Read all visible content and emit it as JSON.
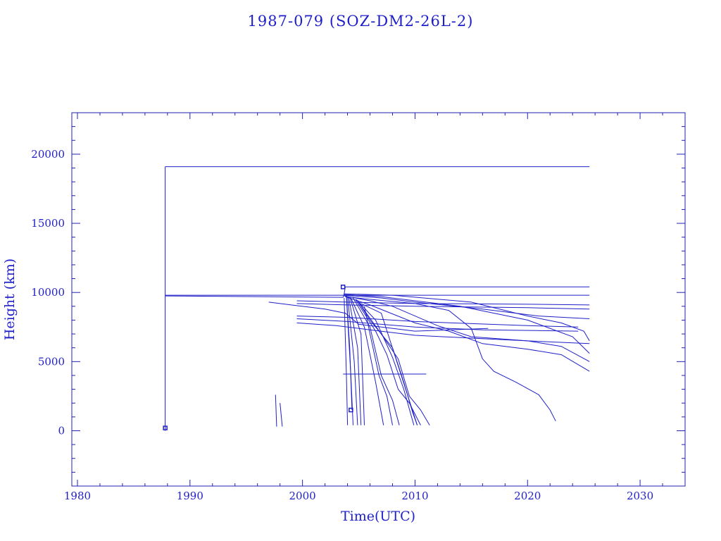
{
  "chart_data": {
    "type": "line",
    "title": "1987-079 (SOZ-DM2-26L-2)",
    "xlabel": "Time(UTC)",
    "ylabel": "Height (km)",
    "xlim": [
      1979.5,
      2034
    ],
    "ylim": [
      -4000,
      23000
    ],
    "xticks": [
      1980,
      1990,
      2000,
      2010,
      2020,
      2030
    ],
    "yticks": [
      0,
      5000,
      10000,
      15000,
      20000
    ],
    "x_minor_step": 2,
    "y_minor_step": 1000,
    "grid": false,
    "color": "#1f1fc8",
    "parent_object": {
      "name": "parent",
      "points": [
        [
          1987.8,
          0
        ],
        [
          1987.8,
          19100
        ],
        [
          1987.8,
          9800
        ],
        [
          2025.5,
          9800
        ]
      ]
    },
    "series": [
      {
        "points": [
          [
            1987.8,
            19100
          ],
          [
            2025.5,
            19100
          ]
        ]
      },
      {
        "points": [
          [
            1987.8,
            9750
          ],
          [
            2003.6,
            9650
          ],
          [
            2003.7,
            9900
          ],
          [
            2003.8,
            10400
          ],
          [
            2025.5,
            10400
          ]
        ]
      },
      {
        "points": [
          [
            1997.6,
            2600
          ],
          [
            1997.7,
            300
          ]
        ]
      },
      {
        "points": [
          [
            1998.0,
            2000
          ],
          [
            1998.2,
            300
          ]
        ]
      },
      {
        "points": [
          [
            1997.0,
            9300
          ],
          [
            1999,
            9100
          ],
          [
            2002,
            8800
          ],
          [
            2003.8,
            8500
          ],
          [
            2005,
            7700
          ],
          [
            2010,
            7200
          ],
          [
            2016.5,
            7400
          ]
        ]
      },
      {
        "points": [
          [
            1999.5,
            9400
          ],
          [
            2004,
            9300
          ],
          [
            2010,
            9200
          ],
          [
            2020,
            9150
          ],
          [
            2025.5,
            9100
          ]
        ]
      },
      {
        "points": [
          [
            1999.5,
            9200
          ],
          [
            2004,
            9100
          ],
          [
            2010,
            9000
          ],
          [
            2020,
            8900
          ],
          [
            2025.5,
            8800
          ]
        ]
      },
      {
        "points": [
          [
            1999.5,
            8300
          ],
          [
            2004,
            8200
          ],
          [
            2010,
            7900
          ],
          [
            2020,
            7600
          ],
          [
            2024.5,
            7500
          ]
        ]
      },
      {
        "points": [
          [
            1999.5,
            8100
          ],
          [
            2004,
            7900
          ],
          [
            2010,
            7500
          ],
          [
            2016,
            7300
          ],
          [
            2024.5,
            7200
          ]
        ]
      },
      {
        "points": [
          [
            1999.5,
            7800
          ],
          [
            2003,
            7600
          ],
          [
            2006,
            7300
          ],
          [
            2010,
            6900
          ],
          [
            2015,
            6700
          ],
          [
            2020,
            6500
          ],
          [
            2025.5,
            6300
          ]
        ]
      },
      {
        "points": [
          [
            2003.7,
            9900
          ],
          [
            2008,
            9800
          ],
          [
            2015,
            9300
          ],
          [
            2020,
            8300
          ],
          [
            2023,
            7800
          ],
          [
            2025,
            7200
          ],
          [
            2025.5,
            6500
          ]
        ]
      },
      {
        "points": [
          [
            2003.7,
            9850
          ],
          [
            2007,
            9700
          ],
          [
            2014,
            9000
          ],
          [
            2020,
            8000
          ],
          [
            2024,
            6800
          ],
          [
            2025.5,
            5600
          ]
        ]
      },
      {
        "points": [
          [
            2003.7,
            9800
          ],
          [
            2007,
            9600
          ],
          [
            2010,
            9300
          ],
          [
            2016,
            8800
          ],
          [
            2021,
            8300
          ],
          [
            2025.5,
            8100
          ]
        ]
      },
      {
        "points": [
          [
            2003.7,
            9750
          ],
          [
            2006,
            9400
          ],
          [
            2008,
            9000
          ],
          [
            2012,
            7600
          ],
          [
            2015,
            6800
          ],
          [
            2020,
            6500
          ],
          [
            2023,
            6100
          ],
          [
            2025.5,
            5000
          ]
        ]
      },
      {
        "points": [
          [
            2003.8,
            9700
          ],
          [
            2006,
            9100
          ],
          [
            2010,
            7800
          ],
          [
            2013,
            7200
          ],
          [
            2016,
            6300
          ],
          [
            2020,
            5900
          ],
          [
            2023,
            5500
          ],
          [
            2025.5,
            4300
          ]
        ]
      },
      {
        "points": [
          [
            2003.9,
            9700
          ],
          [
            2006,
            9500
          ],
          [
            2010,
            9200
          ],
          [
            2013,
            8700
          ],
          [
            2015,
            7400
          ],
          [
            2016,
            5200
          ],
          [
            2017,
            4300
          ],
          [
            2019,
            3500
          ],
          [
            2021,
            2600
          ],
          [
            2022,
            1500
          ],
          [
            2022.5,
            700
          ]
        ]
      },
      {
        "points": [
          [
            2003.6,
            4100
          ],
          [
            2011,
            4100
          ]
        ]
      },
      {
        "points": [
          [
            2003.9,
            9800
          ],
          [
            2004.2,
            6000
          ],
          [
            2004.4,
            1500
          ]
        ]
      },
      {
        "points": [
          [
            2003.7,
            9600
          ],
          [
            2003.9,
            4000
          ],
          [
            2004.0,
            400
          ]
        ]
      },
      {
        "points": [
          [
            2003.9,
            9700
          ],
          [
            2004.3,
            4000
          ],
          [
            2004.5,
            400
          ]
        ]
      },
      {
        "points": [
          [
            2004.0,
            9700
          ],
          [
            2004.6,
            5000
          ],
          [
            2004.9,
            400
          ]
        ]
      },
      {
        "points": [
          [
            2004.1,
            9700
          ],
          [
            2004.9,
            6000
          ],
          [
            2005.2,
            400
          ]
        ]
      },
      {
        "points": [
          [
            2004.2,
            9700
          ],
          [
            2005.2,
            7000
          ],
          [
            2005.5,
            400
          ]
        ]
      },
      {
        "points": [
          [
            2004.3,
            9600
          ],
          [
            2005.5,
            7500
          ],
          [
            2006.5,
            3500
          ],
          [
            2007.2,
            400
          ]
        ]
      },
      {
        "points": [
          [
            2004.5,
            9600
          ],
          [
            2006,
            7500
          ],
          [
            2007,
            4000
          ],
          [
            2008,
            2200
          ],
          [
            2008.6,
            400
          ]
        ]
      },
      {
        "points": [
          [
            2004.7,
            9500
          ],
          [
            2006.5,
            7200
          ],
          [
            2007.5,
            5500
          ],
          [
            2008.5,
            3000
          ],
          [
            2009.5,
            2000
          ],
          [
            2010.5,
            400
          ]
        ]
      },
      {
        "points": [
          [
            2004.8,
            9500
          ],
          [
            2007,
            7000
          ],
          [
            2008.5,
            5200
          ],
          [
            2009.5,
            2500
          ],
          [
            2010.5,
            1500
          ],
          [
            2011.3,
            400
          ]
        ]
      },
      {
        "points": [
          [
            2004.9,
            9400
          ],
          [
            2006,
            8000
          ],
          [
            2008,
            6000
          ],
          [
            2009,
            3500
          ],
          [
            2009.8,
            1300
          ],
          [
            2010.2,
            400
          ]
        ]
      },
      {
        "points": [
          [
            2005.0,
            9300
          ],
          [
            2006.5,
            8000
          ],
          [
            2008,
            5300
          ],
          [
            2009,
            3000
          ],
          [
            2009.9,
            400
          ]
        ]
      },
      {
        "points": [
          [
            2005.2,
            9200
          ],
          [
            2007,
            8500
          ],
          [
            2010.2,
            400
          ]
        ]
      },
      {
        "points": [
          [
            2005.5,
            9000
          ],
          [
            2006,
            7000
          ],
          [
            2006.8,
            4000
          ],
          [
            2007.5,
            2500
          ],
          [
            2008,
            400
          ]
        ]
      }
    ]
  }
}
